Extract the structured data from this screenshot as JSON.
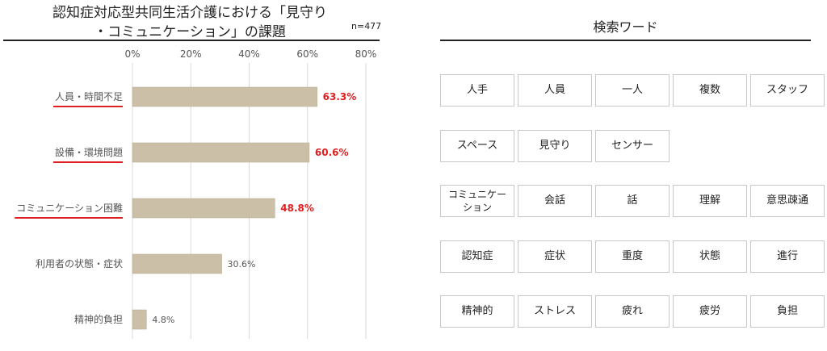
{
  "chart_data": {
    "type": "bar",
    "orientation": "horizontal",
    "title": "認知症対応型共同生活介護における「見守り・コミュニケーション」の課題",
    "title_line1": "認知症対応型共同生活介護における「見守り",
    "title_line2": "・コミュニケーション」の課題",
    "n_label": "n=477",
    "categories": [
      "人員・時間不足",
      "設備・環境問題",
      "コミュニケーション困難",
      "利用者の状態・症状",
      "精神的負担"
    ],
    "values": [
      63.3,
      60.6,
      48.8,
      30.6,
      4.8
    ],
    "value_labels": [
      "63.3%",
      "60.6%",
      "48.8%",
      "30.6%",
      "4.8%"
    ],
    "highlighted": [
      true,
      true,
      true,
      false,
      false
    ],
    "xlim": [
      0,
      80
    ],
    "xticks": [
      0,
      20,
      40,
      60,
      80
    ],
    "xtick_labels": [
      "0%",
      "20%",
      "40%",
      "60%",
      "80%"
    ],
    "xlabel": "",
    "ylabel": "",
    "grid": true,
    "bar_color": "#cbbfa8",
    "highlight_color": "#e02020"
  },
  "keywords": {
    "title": "検索ワード",
    "rows": [
      [
        "人手",
        "人員",
        "一人",
        "複数",
        "スタッフ"
      ],
      [
        "スペース",
        "見守り",
        "センサー"
      ],
      [
        "コミュニケーション",
        "会話",
        "話",
        "理解",
        "意思疎通"
      ],
      [
        "認知症",
        "症状",
        "重度",
        "状態",
        "進行"
      ],
      [
        "精神的",
        "ストレス",
        "疲れ",
        "疲労",
        "負担"
      ]
    ]
  }
}
